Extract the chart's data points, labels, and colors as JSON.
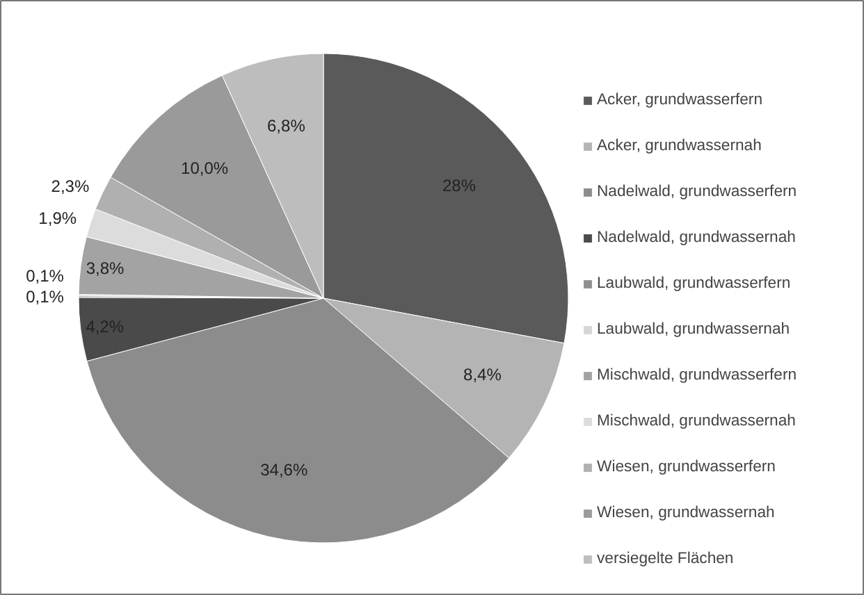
{
  "chart_data": {
    "type": "pie",
    "categories": [
      "Acker, grundwasserfern",
      "Acker, grundwassernah",
      "Nadelwald, grundwasserfern",
      "Nadelwald, grundwassernah",
      "Laubwald, grundwasserfern",
      "Laubwald, grundwassernah",
      "Mischwald, grundwasserfern",
      "Mischwald, grundwassernah",
      "Wiesen, grundwasserfern",
      "Wiesen, grundwassernah",
      "versiegelte Flächen"
    ],
    "values": [
      28,
      8.4,
      34.6,
      4.2,
      0.1,
      0.1,
      3.8,
      1.9,
      2.3,
      10.0,
      6.8
    ],
    "value_labels": [
      "28%",
      "8,4%",
      "34,6%",
      "4,2%",
      "0,1%",
      "0,1%",
      "3,8%",
      "1,9%",
      "2,3%",
      "10,0%",
      "6,8%"
    ],
    "colors": [
      "#5a5a5a",
      "#b4b4b4",
      "#8c8c8c",
      "#4a4a4a",
      "#8f8f8f",
      "#d6d6d6",
      "#a3a3a3",
      "#dcdcdc",
      "#b0b0b0",
      "#9a9a9a",
      "#bdbdbd"
    ],
    "legend": "right"
  }
}
